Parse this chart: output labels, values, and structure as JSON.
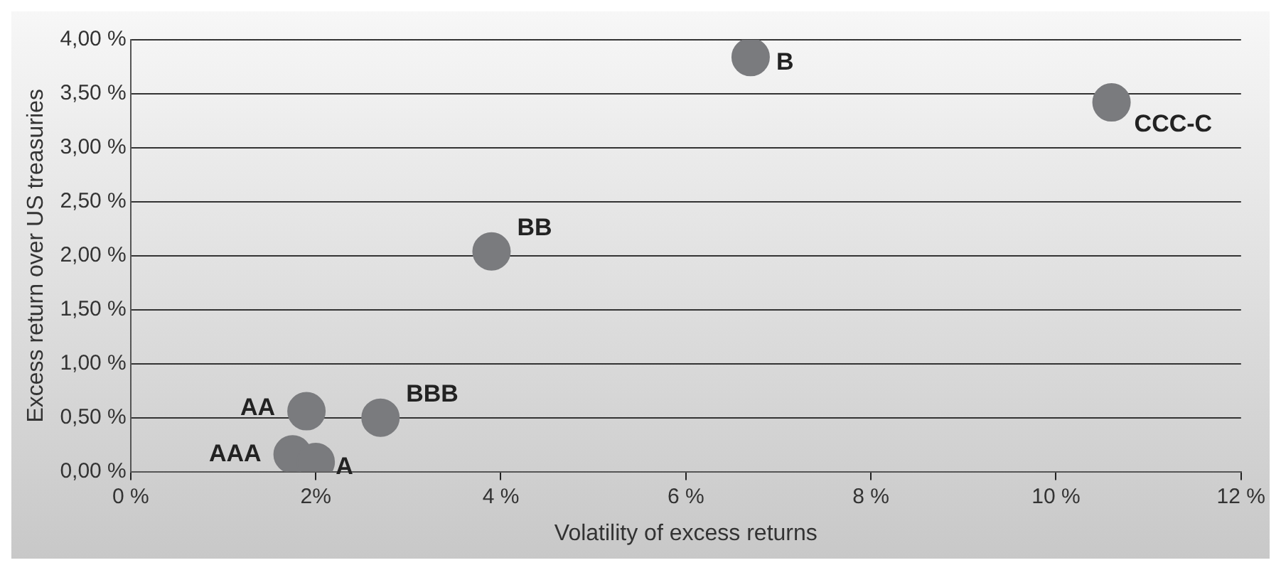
{
  "chart_data": {
    "type": "scatter",
    "xlabel": "Volatility of excess returns",
    "ylabel": "Excess return over US treasuries",
    "series": [
      {
        "color": "#7a7b7e",
        "x": [
          1.75,
          1.9,
          2.0,
          2.7,
          3.9,
          6.7,
          10.6
        ],
        "values": [
          0.16,
          0.56,
          0.09,
          0.5,
          2.04,
          3.84,
          3.42
        ]
      }
    ],
    "annotations": [
      {
        "text": "AAA",
        "x": 1.75,
        "y": 0.16
      },
      {
        "text": "AA",
        "x": 1.9,
        "y": 0.56
      },
      {
        "text": "A",
        "x": 2.0,
        "y": 0.09
      },
      {
        "text": "BBB",
        "x": 2.7,
        "y": 0.5
      },
      {
        "text": "BB",
        "x": 3.9,
        "y": 2.04
      },
      {
        "text": "B",
        "x": 6.7,
        "y": 3.84
      },
      {
        "text": "CCC-C",
        "x": 10.6,
        "y": 3.42
      }
    ],
    "xlim": [
      0,
      12
    ],
    "xticks": [
      {
        "value": 0,
        "label": "0 %"
      },
      {
        "value": 2,
        "label": "2%"
      },
      {
        "value": 4,
        "label": "4 %"
      },
      {
        "value": 6,
        "label": "6 %"
      },
      {
        "value": 8,
        "label": "8 %"
      },
      {
        "value": 10,
        "label": "10 %"
      },
      {
        "value": 12,
        "label": "12 %"
      }
    ],
    "ylim": [
      0,
      4
    ],
    "yticks": [
      {
        "value": 0,
        "label": "0,00 %"
      },
      {
        "value": 0.5,
        "label": "0,50 %"
      },
      {
        "value": 1,
        "label": "1,00 %"
      },
      {
        "value": 1.5,
        "label": "1,50 %"
      },
      {
        "value": 2,
        "label": "2,00 %"
      },
      {
        "value": 2.5,
        "label": "2,50 %"
      },
      {
        "value": 3,
        "label": "3,00 %"
      },
      {
        "value": 3.5,
        "label": "3,50 %"
      },
      {
        "value": 4,
        "label": "4,00 %"
      }
    ],
    "grid": "y",
    "legend": false,
    "marker": "circle"
  }
}
